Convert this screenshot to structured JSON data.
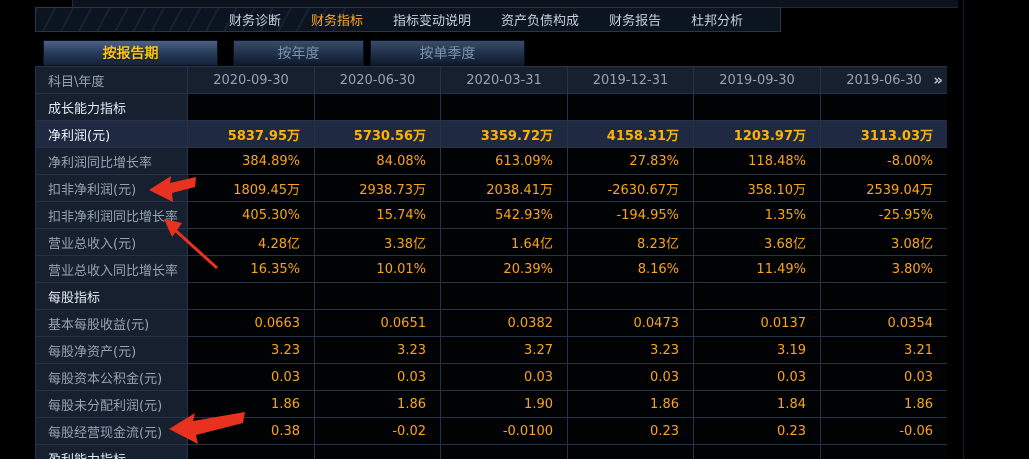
{
  "nav": {
    "items": [
      {
        "label": "财务诊断",
        "active": false
      },
      {
        "label": "财务指标",
        "active": true
      },
      {
        "label": "指标变动说明",
        "active": false
      },
      {
        "label": "资产负债构成",
        "active": false
      },
      {
        "label": "财务报告",
        "active": false
      },
      {
        "label": "杜邦分析",
        "active": false
      }
    ]
  },
  "tabs": [
    {
      "label": "按报告期",
      "active": true
    },
    {
      "label": "按年度",
      "active": false
    },
    {
      "label": "按单季度",
      "active": false
    }
  ],
  "table": {
    "corner_label": "科目\\年度",
    "columns": [
      "2020-09-30",
      "2020-06-30",
      "2020-03-31",
      "2019-12-31",
      "2019-09-30",
      "2019-06-30"
    ],
    "more_icon": "»",
    "rows": [
      {
        "type": "section",
        "label": "成长能力指标",
        "values": [
          "",
          "",
          "",
          "",
          "",
          ""
        ]
      },
      {
        "type": "data",
        "highlight": true,
        "label": "净利润(元)",
        "values": [
          "5837.95万",
          "5730.56万",
          "3359.72万",
          "4158.31万",
          "1203.97万",
          "3113.03万"
        ]
      },
      {
        "type": "data",
        "label": "净利润同比增长率",
        "values": [
          "384.89%",
          "84.08%",
          "613.09%",
          "27.83%",
          "118.48%",
          "-8.00%"
        ]
      },
      {
        "type": "data",
        "label": "扣非净利润(元)",
        "values": [
          "1809.45万",
          "2938.73万",
          "2038.41万",
          "-2630.67万",
          "358.10万",
          "2539.04万"
        ]
      },
      {
        "type": "data",
        "label": "扣非净利润同比增长率",
        "values": [
          "405.30%",
          "15.74%",
          "542.93%",
          "-194.95%",
          "1.35%",
          "-25.95%"
        ]
      },
      {
        "type": "data",
        "label": "营业总收入(元)",
        "values": [
          "4.28亿",
          "3.38亿",
          "1.64亿",
          "8.23亿",
          "3.68亿",
          "3.08亿"
        ]
      },
      {
        "type": "data",
        "label": "营业总收入同比增长率",
        "values": [
          "16.35%",
          "10.01%",
          "20.39%",
          "8.16%",
          "11.49%",
          "3.80%"
        ]
      },
      {
        "type": "section",
        "label": "每股指标",
        "values": [
          "",
          "",
          "",
          "",
          "",
          ""
        ]
      },
      {
        "type": "data",
        "label": "基本每股收益(元)",
        "values": [
          "0.0663",
          "0.0651",
          "0.0382",
          "0.0473",
          "0.0137",
          "0.0354"
        ]
      },
      {
        "type": "data",
        "label": "每股净资产(元)",
        "values": [
          "3.23",
          "3.23",
          "3.27",
          "3.23",
          "3.19",
          "3.21"
        ]
      },
      {
        "type": "data",
        "label": "每股资本公积金(元)",
        "values": [
          "0.03",
          "0.03",
          "0.03",
          "0.03",
          "0.03",
          "0.03"
        ]
      },
      {
        "type": "data",
        "label": "每股未分配利润(元)",
        "values": [
          "1.86",
          "1.86",
          "1.90",
          "1.86",
          "1.84",
          "1.86"
        ]
      },
      {
        "type": "data",
        "label": "每股经营现金流(元)",
        "values": [
          "0.38",
          "-0.02",
          "-0.0100",
          "0.23",
          "0.23",
          "-0.06"
        ]
      },
      {
        "type": "section",
        "label": "盈利能力指标",
        "values": [
          "",
          "",
          "",
          "",
          "",
          ""
        ]
      }
    ]
  },
  "annotations": {
    "arrow_color": "#e93120",
    "targets": [
      "扣非净利润(元)",
      "扣非净利润同比增长率",
      "每股经营现金流(元)"
    ]
  },
  "colors": {
    "value_orange": "#fca51c",
    "highlight_orange": "#ffb300",
    "active_nav": "#ffa727",
    "active_tab_text": "#fdc618",
    "grid_line": "#263247",
    "panel_bg": "#16202f"
  }
}
